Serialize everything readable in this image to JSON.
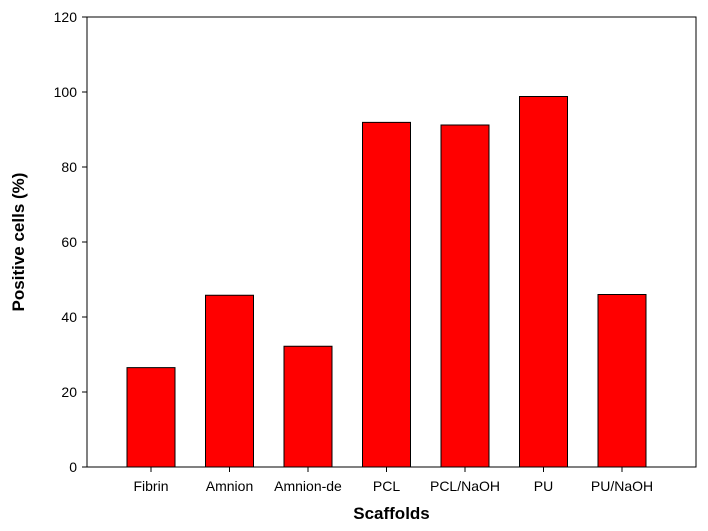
{
  "chart_data": {
    "type": "bar",
    "title": "",
    "xlabel": "Scaffolds",
    "ylabel": "Positive cells (%)",
    "ylim": [
      0,
      120
    ],
    "yticks": [
      0,
      20,
      40,
      60,
      80,
      100,
      120
    ],
    "grid": false,
    "categories": [
      "Fibrin",
      "Amnion",
      "Amnion-de",
      "PCL",
      "PCL/NaOH",
      "PU",
      "PU/NaOH"
    ],
    "values": [
      26.5,
      45.8,
      32.2,
      91.9,
      91.2,
      98.8,
      46.0
    ],
    "bar_color": "#ff0000"
  }
}
